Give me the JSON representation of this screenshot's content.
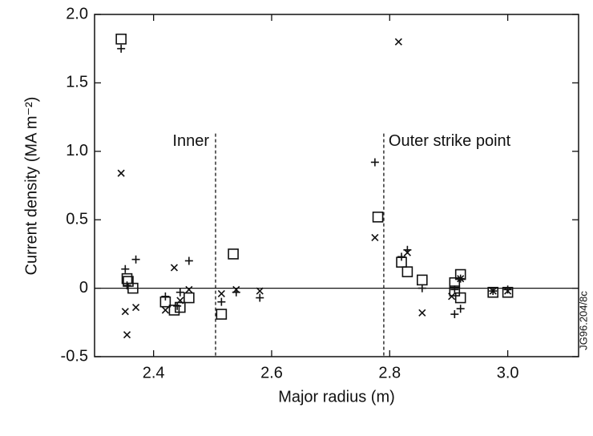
{
  "chart_data": {
    "type": "scatter",
    "x_label": "Major radius (m)",
    "y_label": "Current density (MA m⁻²)",
    "xlim": [
      2.3,
      3.12
    ],
    "ylim": [
      -0.5,
      2.0
    ],
    "xticks": [
      2.4,
      2.6,
      2.8,
      {
        "value": 3.0,
        "label": "3.0"
      }
    ],
    "yticks": [
      -0.5,
      0,
      0.5,
      {
        "value": 1.0,
        "label": "1.0"
      },
      1.5,
      {
        "value": 2.0,
        "label": "2.0"
      }
    ],
    "zero_line": 0,
    "vlines": [
      2.505,
      2.79
    ],
    "annotations": [
      "Inner",
      "Outer strike point"
    ],
    "side_note": "JG96.204/8c",
    "series": [
      {
        "marker": "square",
        "color": "#111111",
        "x": [
          2.345,
          2.355,
          2.357,
          2.365,
          2.42,
          2.435,
          2.445,
          2.46,
          2.515,
          2.535,
          2.78,
          2.82,
          2.83,
          2.855,
          2.91,
          2.91,
          2.92,
          2.92,
          2.975,
          3.0
        ],
        "values": [
          1.82,
          0.07,
          0.05,
          0.0,
          -0.1,
          -0.16,
          -0.14,
          -0.07,
          -0.19,
          0.25,
          0.52,
          0.19,
          0.12,
          0.06,
          0.04,
          -0.02,
          0.1,
          -0.07,
          -0.03,
          -0.03
        ]
      },
      {
        "marker": "plus",
        "color": "#111111",
        "x": [
          2.345,
          2.352,
          2.355,
          2.37,
          2.42,
          2.44,
          2.445,
          2.46,
          2.515,
          2.54,
          2.58,
          2.775,
          2.82,
          2.83,
          2.855,
          2.91,
          2.91,
          2.92,
          2.92,
          2.975,
          3.0
        ],
        "values": [
          1.75,
          0.14,
          0.02,
          0.21,
          -0.06,
          -0.13,
          -0.03,
          0.2,
          -0.1,
          -0.03,
          -0.07,
          0.92,
          0.23,
          0.28,
          0.0,
          -0.01,
          -0.19,
          -0.15,
          0.07,
          -0.02,
          -0.01
        ]
      },
      {
        "marker": "cross",
        "color": "#111111",
        "x": [
          2.345,
          2.352,
          2.355,
          2.37,
          2.42,
          2.435,
          2.445,
          2.46,
          2.515,
          2.54,
          2.58,
          2.775,
          2.815,
          2.83,
          2.855,
          2.905,
          2.92,
          2.975,
          3.0
        ],
        "values": [
          0.84,
          -0.17,
          -0.34,
          -0.14,
          -0.16,
          0.15,
          -0.09,
          -0.01,
          -0.04,
          -0.01,
          -0.02,
          0.37,
          1.8,
          0.26,
          -0.18,
          -0.06,
          0.07,
          -0.02,
          -0.02
        ]
      }
    ]
  }
}
